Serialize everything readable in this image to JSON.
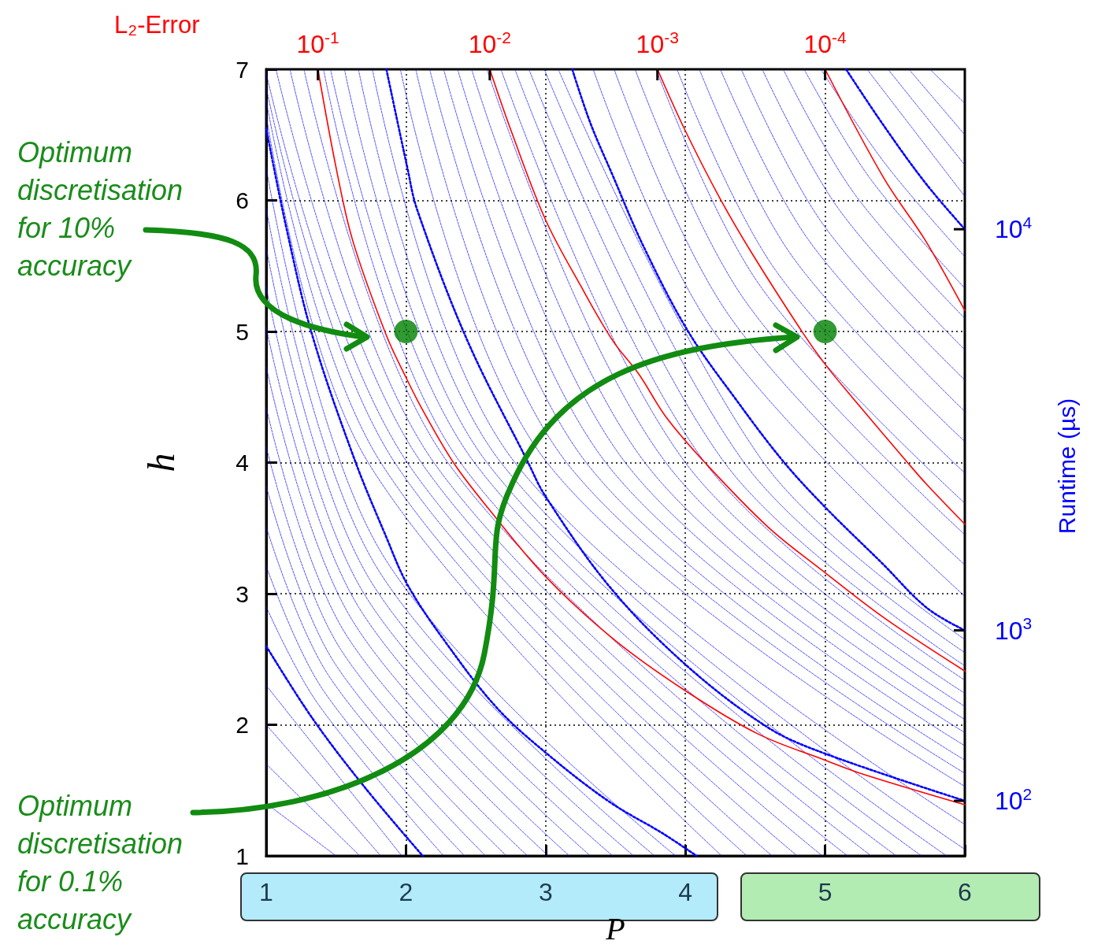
{
  "chart_data": {
    "type": "line",
    "xlabel": "P",
    "ylabel": "h",
    "xlim": [
      1,
      6
    ],
    "ylim": [
      1,
      7
    ],
    "xticks": [
      1,
      2,
      3,
      4,
      5,
      6
    ],
    "yticks": [
      1,
      2,
      3,
      4,
      5,
      6,
      7
    ],
    "grid": true,
    "annotations": [
      "L₂-Error",
      "Runtime (µs)",
      "Optimum discretisation for 10% accuracy",
      "Optimum discretisation for 0.1% accuracy",
      {
        "text": "10$^{-1}$",
        "x": 1.37,
        "y": 7
      },
      {
        "text": "10$^{-2}$",
        "x": 2.6,
        "y": 7
      },
      {
        "text": "10$^{-3}$",
        "x": 3.8,
        "y": 7
      },
      {
        "text": "10$^{-4}$",
        "x": 5.0,
        "y": 7
      },
      {
        "text": "10$^{4}$",
        "x": 6,
        "y": 5.78
      },
      {
        "text": "10$^{3}$",
        "x": 6,
        "y": 2.72
      },
      {
        "text": "10$^{2}$",
        "x": 6,
        "y": 1.42
      }
    ],
    "series": [
      {
        "color": "#0000ff",
        "line_style": "dashed",
        "x": [
          1,
          1.37,
          2.27
        ],
        "values": [
          2.9,
          2.16,
          1
        ]
      },
      {
        "color": "#0000ff",
        "line_style": "dashed",
        "x": [
          1,
          1.41,
          2.42
        ],
        "values": [
          3.21,
          2.26,
          1
        ]
      },
      {
        "color": "#0000ff",
        "line_style": "dashed",
        "x": [
          1,
          1.45,
          2.57
        ],
        "values": [
          3.51,
          2.37,
          1
        ]
      },
      {
        "color": "#0000ff",
        "line_style": "dashed",
        "x": [
          1,
          1.49,
          2.72
        ],
        "values": [
          3.82,
          2.47,
          1
        ]
      },
      {
        "color": "#0000ff",
        "line_style": "dashed",
        "x": [
          1,
          1.53,
          2.87
        ],
        "values": [
          4.12,
          2.58,
          1
        ]
      },
      {
        "color": "#0000ff",
        "line_style": "dashed",
        "x": [
          1,
          1.57,
          3.02
        ],
        "values": [
          4.42,
          2.69,
          1
        ]
      },
      {
        "color": "#0000ff",
        "line_style": "dashed",
        "x": [
          1,
          1.62,
          3.17
        ],
        "values": [
          4.73,
          2.79,
          1
        ]
      },
      {
        "color": "#0000ff",
        "line_style": "dashed",
        "x": [
          1,
          1.66,
          3.32
        ],
        "values": [
          5.03,
          2.9,
          1
        ]
      },
      {
        "color": "#0000ff",
        "line_style": "dashed",
        "x": [
          1,
          1.7,
          3.48
        ],
        "values": [
          5.34,
          3.0,
          1
        ]
      },
      {
        "color": "#0000ff",
        "line_style": "dashed",
        "x": [
          1,
          1.74,
          3.63
        ],
        "values": [
          5.64,
          3.11,
          1
        ]
      },
      {
        "color": "#0000ff",
        "line_style": "dashed",
        "x": [
          1,
          1.78,
          3.78
        ],
        "values": [
          5.94,
          3.22,
          1
        ]
      },
      {
        "color": "#0000ff",
        "line_style": "dashed",
        "x": [
          1,
          1.82,
          3.93
        ],
        "values": [
          6.25,
          3.32,
          1
        ]
      },
      {
        "color": "#0000ff",
        "line_style": "dashed",
        "x": [
          1,
          1.73,
          4.26
        ],
        "values": [
          6.65,
          4,
          1
        ]
      },
      {
        "color": "#0000ff",
        "line_style": "dashed",
        "x": [
          1,
          1.82,
          4.44
        ],
        "values": [
          6.76,
          4,
          1
        ]
      },
      {
        "color": "#0000ff",
        "line_style": "dashed",
        "x": [
          1,
          1.92,
          4.62
        ],
        "values": [
          6.86,
          4,
          1
        ]
      },
      {
        "color": "#0000ff",
        "line_style": "dashed",
        "x": [
          1,
          2.01,
          4.8
        ],
        "values": [
          6.97,
          4,
          1
        ]
      },
      {
        "color": "#0000ff",
        "line_style": "dashed",
        "x": [
          1.07,
          2.11,
          4.98
        ],
        "values": [
          7,
          4,
          1
        ]
      },
      {
        "color": "#0000ff",
        "line_style": "dashed",
        "x": [
          1.17,
          2.2,
          5.16
        ],
        "values": [
          7,
          4,
          1
        ]
      },
      {
        "color": "#0000ff",
        "line_style": "dashed",
        "x": [
          1.27,
          2.3,
          5.33
        ],
        "values": [
          7,
          4,
          1
        ]
      },
      {
        "color": "#0000ff",
        "line_style": "dashed",
        "x": [
          1.41,
          2.39,
          5.51
        ],
        "values": [
          7,
          4,
          1
        ]
      },
      {
        "color": "#0000ff",
        "line_style": "dashed",
        "x": [
          1.46,
          2.49,
          5.69
        ],
        "values": [
          7,
          4,
          1
        ]
      },
      {
        "color": "#0000ff",
        "line_style": "dashed",
        "x": [
          1.56,
          2.58,
          5.87
        ],
        "values": [
          7,
          4,
          1
        ]
      },
      {
        "color": "#0000ff",
        "line_style": "dashed",
        "x": [
          1.66,
          2.68,
          6
        ],
        "values": [
          7,
          4,
          1.05
        ]
      },
      {
        "color": "#0000ff",
        "line_style": "dashed",
        "x": [
          1.76,
          2.78,
          6
        ],
        "values": [
          7,
          4,
          1.24
        ]
      },
      {
        "color": "#0000ff",
        "line_style": "dashed",
        "x": [
          1.96,
          3.01,
          6
        ],
        "values": [
          7,
          4,
          1.53
        ]
      },
      {
        "color": "#0000ff",
        "line_style": "dashed",
        "x": [
          2.07,
          3.15,
          6
        ],
        "values": [
          7,
          4,
          1.63
        ]
      },
      {
        "color": "#0000ff",
        "line_style": "dashed",
        "x": [
          2.17,
          3.29,
          6
        ],
        "values": [
          7,
          4,
          1.73
        ]
      },
      {
        "color": "#0000ff",
        "line_style": "dashed",
        "x": [
          2.27,
          3.43,
          6
        ],
        "values": [
          7,
          4,
          1.84
        ]
      },
      {
        "color": "#0000ff",
        "line_style": "dashed",
        "x": [
          2.37,
          3.57,
          6
        ],
        "values": [
          7,
          4,
          1.94
        ]
      },
      {
        "color": "#0000ff",
        "line_style": "dashed",
        "x": [
          2.47,
          3.71,
          6
        ],
        "values": [
          7,
          4,
          2.04
        ]
      },
      {
        "color": "#0000ff",
        "line_style": "dashed",
        "x": [
          2.58,
          3.86,
          6
        ],
        "values": [
          7,
          4,
          2.14
        ]
      },
      {
        "color": "#0000ff",
        "line_style": "dashed",
        "x": [
          2.68,
          4.0,
          6
        ],
        "values": [
          7,
          4,
          2.24
        ]
      },
      {
        "color": "#0000ff",
        "line_style": "dashed",
        "x": [
          2.78,
          4.14,
          6
        ],
        "values": [
          7,
          4,
          2.34
        ]
      },
      {
        "color": "#0000ff",
        "line_style": "dashed",
        "x": [
          2.88,
          4.28,
          6
        ],
        "values": [
          7,
          4,
          2.45
        ]
      },
      {
        "color": "#0000ff",
        "line_style": "dashed",
        "x": [
          2.99,
          4.42,
          6
        ],
        "values": [
          7,
          4,
          2.55
        ]
      },
      {
        "color": "#0000ff",
        "line_style": "dashed",
        "x": [
          3.09,
          4.56,
          6
        ],
        "values": [
          7,
          4,
          2.65
        ]
      },
      {
        "color": "#0000ff",
        "line_style": "dashed",
        "x": [
          3.34,
          4.21,
          6
        ],
        "values": [
          7,
          4.99,
          2.98
        ]
      },
      {
        "color": "#0000ff",
        "line_style": "dashed",
        "x": [
          3.49,
          4.32,
          6
        ],
        "values": [
          7,
          5.11,
          3.22
        ]
      },
      {
        "color": "#0000ff",
        "line_style": "dashed",
        "x": [
          3.64,
          4.43,
          6
        ],
        "values": [
          7,
          5.23,
          3.45
        ]
      },
      {
        "color": "#0000ff",
        "line_style": "dashed",
        "x": [
          3.79,
          4.54,
          6
        ],
        "values": [
          7,
          5.34,
          3.69
        ]
      },
      {
        "color": "#0000ff",
        "line_style": "dashed",
        "x": [
          3.94,
          4.65,
          6
        ],
        "values": [
          7,
          5.46,
          3.92
        ]
      },
      {
        "color": "#0000ff",
        "line_style": "dashed",
        "x": [
          4.1,
          4.76,
          6
        ],
        "values": [
          7,
          5.58,
          4.16
        ]
      },
      {
        "color": "#0000ff",
        "line_style": "dashed",
        "x": [
          4.25,
          4.88,
          6
        ],
        "values": [
          7,
          5.7,
          4.39
        ]
      },
      {
        "color": "#0000ff",
        "line_style": "dashed",
        "x": [
          4.4,
          4.99,
          6
        ],
        "values": [
          7,
          5.81,
          4.63
        ]
      },
      {
        "color": "#0000ff",
        "line_style": "dashed",
        "x": [
          4.55,
          5.1,
          6
        ],
        "values": [
          7,
          5.93,
          4.86
        ]
      },
      {
        "color": "#0000ff",
        "line_style": "dashed",
        "x": [
          4.7,
          5.21,
          6
        ],
        "values": [
          7,
          6.05,
          5.1
        ]
      },
      {
        "color": "#0000ff",
        "line_style": "dashed",
        "x": [
          4.85,
          5.32,
          6
        ],
        "values": [
          7,
          6.17,
          5.33
        ]
      },
      {
        "color": "#0000ff",
        "line_style": "dashed",
        "x": [
          4.97,
          5.43,
          6
        ],
        "values": [
          7,
          6.28,
          5.57
        ]
      },
      {
        "color": "#0000ff",
        "line_style": "dashed",
        "x": [
          5.3,
          6
        ],
        "values": [
          7,
          6.03
        ]
      },
      {
        "color": "#0000ff",
        "line_style": "dashed",
        "x": [
          5.45,
          6
        ],
        "values": [
          7,
          6.27
        ]
      },
      {
        "color": "#0000ff",
        "line_style": "dashed",
        "x": [
          5.6,
          6
        ],
        "values": [
          7,
          6.5
        ]
      },
      {
        "color": "#0000ff",
        "line_style": "dashed",
        "x": [
          5.75,
          6
        ],
        "values": [
          7,
          6.74
        ]
      },
      {
        "color": "#0000ff",
        "line_style": "dashed",
        "x": [
          1,
          1.5
        ],
        "values": [
          1.4,
          1
        ]
      },
      {
        "color": "#0000ff",
        "line_style": "dashed",
        "x": [
          1,
          1.67
        ],
        "values": [
          1.7,
          1
        ]
      },
      {
        "color": "#0000ff",
        "line_style": "dashed",
        "x": [
          1,
          1.82
        ],
        "values": [
          2.0,
          1
        ]
      },
      {
        "color": "#0000ff",
        "line_style": "dashed",
        "x": [
          1,
          1.97
        ],
        "values": [
          2.3,
          1
        ]
      },
      {
        "color": "#0000ff",
        "line_style": "dotted",
        "x": [
          1,
          1.33,
          1.7,
          2.12
        ],
        "values": [
          2.6,
          2.05,
          1.53,
          1
        ]
      },
      {
        "color": "#0000ff",
        "line_style": "dotted",
        "x": [
          1,
          1.14,
          1.33,
          1.63,
          1.86,
          2.01,
          2.27,
          2.65,
          3.02,
          3.46,
          3.84,
          4.08
        ],
        "values": [
          6.55,
          5.81,
          4.97,
          4.03,
          3.43,
          3.07,
          2.65,
          2.13,
          1.77,
          1.41,
          1.17,
          1
        ]
      },
      {
        "color": "#0000ff",
        "line_style": "dotted",
        "x": [
          1.86,
          2.01,
          2.08,
          2.44,
          2.87,
          3.0,
          3.46,
          4.0,
          4.59,
          5.0,
          6
        ],
        "values": [
          7,
          6.25,
          5.93,
          4.93,
          4.01,
          3.74,
          3.05,
          2.46,
          1.98,
          1.78,
          1.42
        ]
      },
      {
        "color": "#0000ff",
        "line_style": "dotted",
        "x": [
          3.19,
          3.32,
          3.48,
          3.7,
          4.02,
          4.37,
          4.7,
          5.0,
          5.41,
          5.73,
          6
        ],
        "values": [
          7,
          6.59,
          6.19,
          5.65,
          5.0,
          4.47,
          4.01,
          3.66,
          3.23,
          2.89,
          2.72
        ]
      },
      {
        "color": "#0000ff",
        "line_style": "dotted",
        "x": [
          5.15,
          5.42,
          5.72,
          6
        ],
        "values": [
          7,
          6.57,
          6.13,
          5.78
        ]
      },
      {
        "color": "#ff0000",
        "line_style": "solid",
        "x": [
          1.37,
          1.5,
          1.62,
          1.86,
          2.0,
          2.12,
          2.34,
          2.59,
          3.0,
          3.49,
          4.0,
          4.52,
          5.0,
          5.28,
          6.0
        ],
        "values": [
          7,
          6.25,
          5.69,
          4.97,
          4.65,
          4.4,
          4.0,
          3.65,
          3.13,
          2.65,
          2.26,
          1.93,
          1.73,
          1.62,
          1.39
        ]
      },
      {
        "color": "#ff0000",
        "line_style": "solid",
        "x": [
          2.6,
          2.76,
          3.0,
          3.25,
          3.48,
          3.67,
          3.86,
          4.14,
          4.59,
          5.0,
          5.43,
          6.0
        ],
        "values": [
          7,
          6.51,
          5.85,
          5.35,
          4.93,
          4.67,
          4.35,
          4.0,
          3.51,
          3.16,
          2.81,
          2.41
        ]
      },
      {
        "color": "#ff0000",
        "line_style": "solid",
        "x": [
          3.8,
          4.0,
          4.25,
          4.48,
          4.84,
          5.0,
          5.2,
          5.59,
          5.73,
          6.0
        ],
        "values": [
          7,
          6.53,
          6.01,
          5.59,
          4.99,
          4.75,
          4.49,
          4.0,
          3.83,
          3.53
        ]
      },
      {
        "color": "#ff0000",
        "line_style": "solid",
        "x": [
          5.0,
          5.42,
          5.72,
          6.0
        ],
        "values": [
          7,
          6.17,
          5.69,
          5.16
        ]
      },
      {
        "type": "scatter",
        "color": "#008000",
        "marker": "circle",
        "x": [
          2,
          5
        ],
        "values": [
          5,
          5
        ]
      }
    ]
  }
}
